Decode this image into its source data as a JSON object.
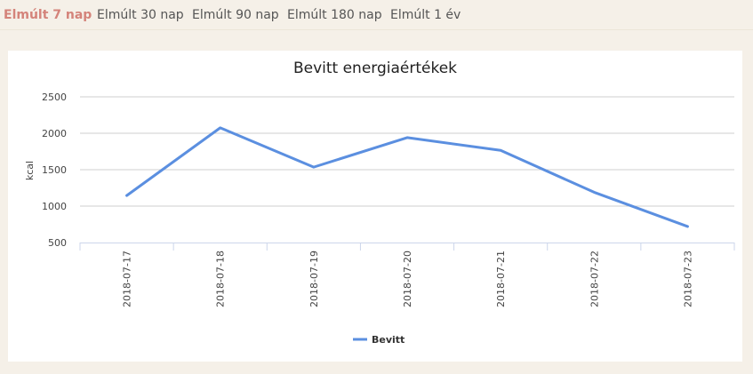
{
  "tabs": [
    {
      "label": "Elmúlt 7 nap",
      "active": true
    },
    {
      "label": "Elmúlt 30 nap",
      "active": false
    },
    {
      "label": "Elmúlt 90 nap",
      "active": false
    },
    {
      "label": "Elmúlt 180 nap",
      "active": false
    },
    {
      "label": "Elmúlt 1 év",
      "active": false
    }
  ],
  "chart_data": {
    "type": "line",
    "title": "Bevitt energiaértékek",
    "xlabel": "",
    "ylabel": "kcal",
    "categories": [
      "2018-07-17",
      "2018-07-18",
      "2018-07-19",
      "2018-07-20",
      "2018-07-21",
      "2018-07-22",
      "2018-07-23"
    ],
    "series": [
      {
        "name": "Bevitt",
        "color": "#5b8fe0",
        "values": [
          1145,
          2075,
          1535,
          1940,
          1765,
          1190,
          720
        ]
      }
    ],
    "yticks": [
      500,
      1000,
      1500,
      2000,
      2500
    ],
    "ylim": [
      500,
      2500
    ],
    "grid": true,
    "legend": "bottom"
  }
}
